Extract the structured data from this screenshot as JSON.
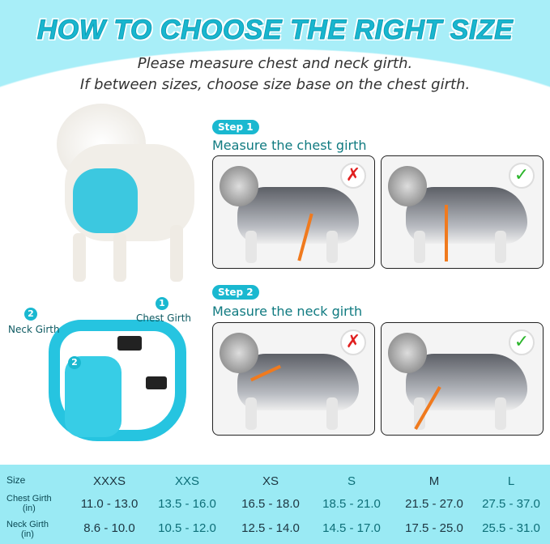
{
  "header": {
    "title": "HOW TO CHOOSE THE RIGHT SIZE",
    "subtitle_1": "Please measure chest and neck girth.",
    "subtitle_2": "If between sizes, choose size base on the chest girth."
  },
  "harness": {
    "neck_label": "Neck Girth",
    "neck_num": "2",
    "chest_label": "Chest Girth",
    "chest_num": "1",
    "inner_num": "2"
  },
  "steps": [
    {
      "badge": "Step 1",
      "text": "Measure the chest girth",
      "wrong_icon": "cross-icon",
      "right_icon": "check-icon"
    },
    {
      "badge": "Step 2",
      "text": "Measure the neck girth",
      "wrong_icon": "cross-icon",
      "right_icon": "check-icon"
    }
  ],
  "colors": {
    "accent": "#1ab8d0",
    "table_bg": "#9aeaf4",
    "strap": "#f07a1e",
    "wrong": "#e02020",
    "right": "#2bb52b"
  },
  "table": {
    "row_labels": [
      {
        "a": "Size",
        "b": ""
      },
      {
        "a": "Chest Girth",
        "b": "(in)"
      },
      {
        "a": "Neck Girth",
        "b": "(in)"
      }
    ],
    "sizes": [
      "XXXS",
      "XXS",
      "XS",
      "S",
      "M",
      "L"
    ],
    "chest": [
      "11.0 - 13.0",
      "13.5 - 16.0",
      "16.5 - 18.0",
      "18.5 - 21.0",
      "21.5 - 27.0",
      "27.5 - 37.0"
    ],
    "neck": [
      "8.6 - 10.0",
      "10.5 - 12.0",
      "12.5 - 14.0",
      "14.5 - 17.0",
      "17.5 - 25.0",
      "25.5 - 31.0"
    ]
  }
}
